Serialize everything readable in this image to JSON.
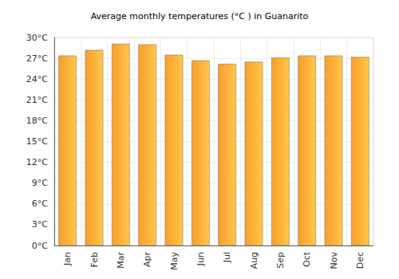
{
  "chart_data": {
    "type": "bar",
    "title": "Average monthly temperatures (°C ) in Guanarito",
    "categories": [
      "Jan",
      "Feb",
      "Mar",
      "Apr",
      "May",
      "Jun",
      "Jul",
      "Aug",
      "Sep",
      "Oct",
      "Nov",
      "Dec"
    ],
    "values": [
      27.4,
      28.2,
      29.1,
      29.0,
      27.5,
      26.7,
      26.2,
      26.5,
      27.1,
      27.4,
      27.4,
      27.2
    ],
    "color": "#fdb13a",
    "ylim": [
      0,
      30
    ],
    "yticks": [
      {
        "value": 0,
        "label": "0°C"
      },
      {
        "value": 3,
        "label": "3°C"
      },
      {
        "value": 6,
        "label": "6°C"
      },
      {
        "value": 9,
        "label": "9°C"
      },
      {
        "value": 12,
        "label": "12°C"
      },
      {
        "value": 15,
        "label": "15°C"
      },
      {
        "value": 18,
        "label": "18°C"
      },
      {
        "value": 21,
        "label": "21°C"
      },
      {
        "value": 24,
        "label": "24°C"
      },
      {
        "value": 27,
        "label": "27°C"
      },
      {
        "value": 30,
        "label": "30°C"
      }
    ],
    "grid": true
  }
}
